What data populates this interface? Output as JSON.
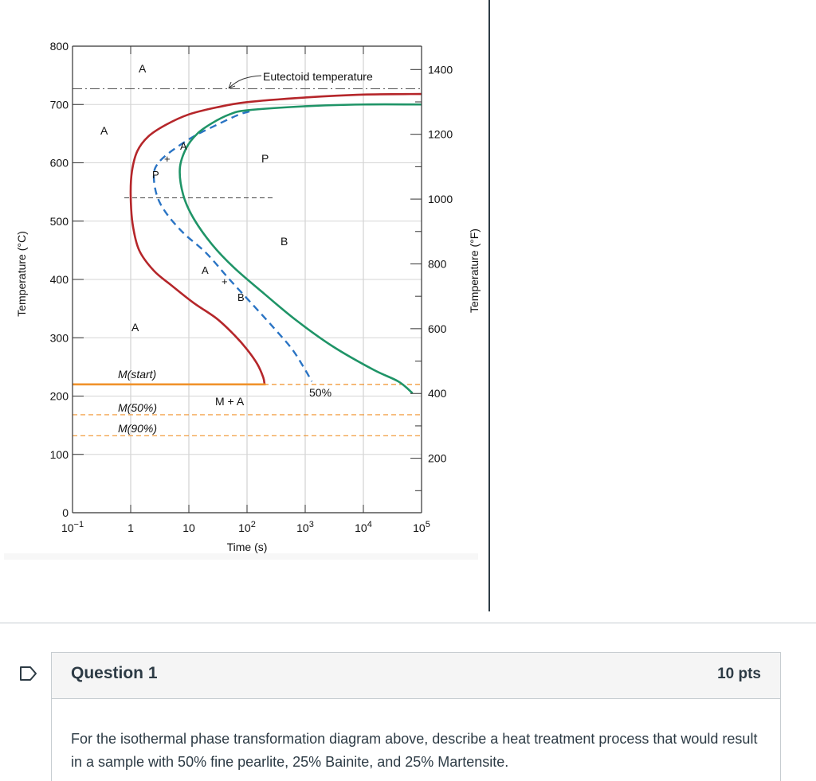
{
  "chart_data": {
    "type": "line",
    "title": "",
    "xlabel": "Time (s)",
    "ylabel_left": "Temperature (°C)",
    "ylabel_right": "Temperature (°F)",
    "x_scale": "log",
    "xlim": [
      0.1,
      100000
    ],
    "ylim": [
      0,
      800
    ],
    "x_ticks": [
      {
        "value": 0.1,
        "base": "10",
        "exp": "−1"
      },
      {
        "value": 1,
        "base": "1",
        "exp": ""
      },
      {
        "value": 10,
        "base": "10",
        "exp": ""
      },
      {
        "value": 100,
        "base": "10",
        "exp": "2"
      },
      {
        "value": 1000,
        "base": "10",
        "exp": "3"
      },
      {
        "value": 10000,
        "base": "10",
        "exp": "4"
      },
      {
        "value": 100000,
        "base": "10",
        "exp": "5"
      }
    ],
    "y_ticks": [
      0,
      100,
      200,
      300,
      400,
      500,
      600,
      700,
      800
    ],
    "y_right_ticks": [
      200,
      400,
      600,
      800,
      1000,
      1200,
      1400
    ],
    "grid": true,
    "colors": {
      "start_curve": "#b5262a",
      "finish_curve": "#1f9467",
      "half_curve": "#2a74c4",
      "martensite": "#f0922b",
      "reference": "#555555"
    },
    "eutectoid_temperature": 727,
    "series": [
      {
        "name": "",
        "role": "start",
        "x": [
          100000,
          10000,
          1000,
          100,
          30,
          10,
          4,
          2,
          1.3,
          1.05,
          1,
          1.08,
          1.4,
          2.5,
          5,
          12,
          30,
          60,
          100,
          150,
          190,
          200
        ],
        "y": [
          718,
          717,
          712,
          704,
          695,
          683,
          665,
          645,
          620,
          585,
          545,
          495,
          450,
          415,
          390,
          360,
          333,
          305,
          280,
          255,
          232,
          220
        ]
      },
      {
        "name": "",
        "role": "half",
        "x": [
          110,
          70,
          30,
          12,
          5,
          3,
          2.5,
          2.8,
          4,
          8,
          20,
          50,
          130,
          300,
          600,
          1000,
          1300
        ],
        "y": [
          688,
          682,
          665,
          645,
          620,
          600,
          580,
          545,
          515,
          480,
          445,
          400,
          355,
          315,
          280,
          245,
          225
        ]
      },
      {
        "name": "",
        "role": "finish",
        "x": [
          100000,
          10000,
          1000,
          100,
          50,
          25,
          14,
          9,
          7,
          8,
          12,
          25,
          60,
          200,
          700,
          3000,
          15000,
          40000,
          70000
        ],
        "y": [
          700,
          700,
          697,
          690,
          683,
          668,
          650,
          625,
          590,
          545,
          505,
          460,
          420,
          375,
          330,
          285,
          245,
          225,
          205
        ]
      },
      {
        "name": "",
        "role": "martensite-start",
        "x": [
          0.1,
          210
        ],
        "y": [
          220,
          220
        ]
      }
    ],
    "reference_lines": [
      {
        "label": "M(start)",
        "y": 220,
        "style": "dashed-orange"
      },
      {
        "label": "M(50%)",
        "y": 168,
        "style": "dashed-orange"
      },
      {
        "label": "M(90%)",
        "y": 132,
        "style": "dashed-orange"
      },
      {
        "label": "",
        "y": 540,
        "style": "dashed-black",
        "x_range": [
          1,
          300
        ]
      }
    ],
    "annotations": {
      "eutectoid": "Eutectoid temperature",
      "a_top": "A",
      "a_left": "A",
      "a_curve_top": "A",
      "plus_top": "+",
      "p_curve": "P",
      "p_right": "P",
      "b_region": "B",
      "a_curve_mid": "A",
      "plus_mid": "+",
      "b_curve": "B",
      "a_low": "A",
      "m_start": "M(start)",
      "m_50": "M(50%)",
      "m_90": "M(90%)",
      "m_plus_a": "M + A",
      "fifty": "50%"
    }
  },
  "question": {
    "title": "Question 1",
    "points": "10 pts",
    "text": "For the isothermal phase transformation diagram above, describe a heat treatment process that would result in a sample with 50% fine pearlite, 25% Bainite, and 25% Martensite."
  }
}
